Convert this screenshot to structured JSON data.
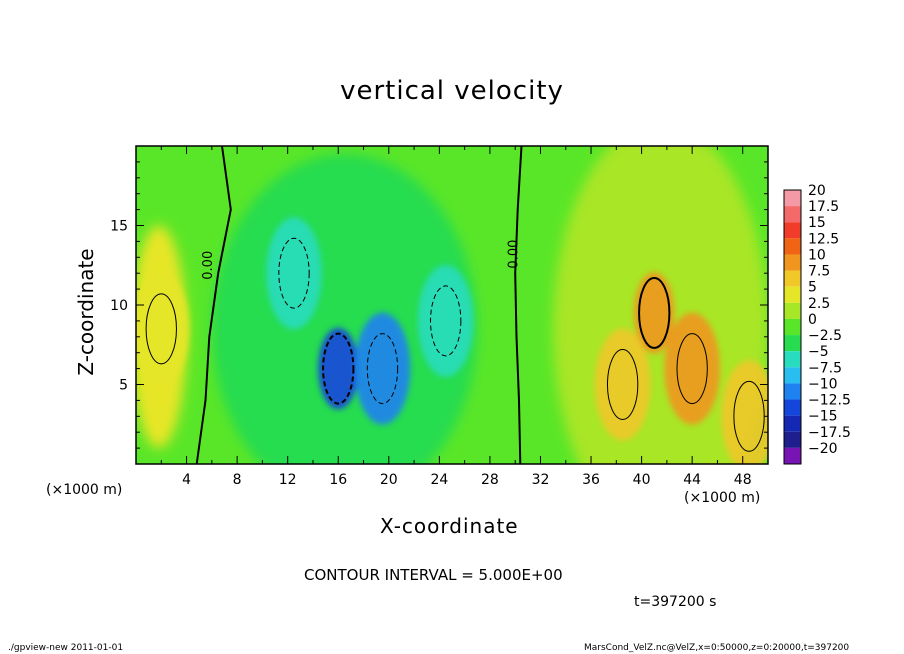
{
  "chart_data": {
    "type": "contour",
    "title": "vertical velocity",
    "xlabel": "X-coordinate",
    "ylabel": "Z-coordinate",
    "x_unit_label": "(×1000 m)",
    "y_unit_label": "(×1000 m)",
    "xlim": [
      0,
      50
    ],
    "ylim": [
      0,
      20
    ],
    "x_ticks": [
      4,
      8,
      12,
      16,
      20,
      24,
      28,
      32,
      36,
      40,
      44,
      48
    ],
    "y_ticks": [
      5,
      10,
      15
    ],
    "contour_interval_label": "CONTOUR INTERVAL = 5.000E+00",
    "contour_labels": [
      {
        "text": "0.00",
        "x": 6.0,
        "z": 12.5
      },
      {
        "text": "0.00",
        "x": 30.2,
        "z": 13.2
      }
    ],
    "colorbar": {
      "labels": [
        "20",
        "17.5",
        "15",
        "12.5",
        "10",
        "7.5",
        "5",
        "2.5",
        "0",
        "-2.5",
        "-5",
        "-7.5",
        "-10",
        "-12.5",
        "-15",
        "-17.5",
        "-20"
      ],
      "colors": [
        "#f49aa6",
        "#f46a6a",
        "#f03c28",
        "#f06414",
        "#f0961e",
        "#f0c828",
        "#e6e628",
        "#a8e628",
        "#5ae628",
        "#28dc50",
        "#28dcbe",
        "#28bef0",
        "#1e82f0",
        "#1446dc",
        "#1428b4",
        "#1e1e8c",
        "#7814b4"
      ]
    },
    "features": [
      {
        "kind": "updraft",
        "x": 2.0,
        "z": 8.5,
        "value": 5
      },
      {
        "kind": "downdraft",
        "x": 12.5,
        "z": 12.0,
        "value": -5
      },
      {
        "kind": "downdraft",
        "x": 16.0,
        "z": 6.0,
        "value": -12
      },
      {
        "kind": "downdraft",
        "x": 19.5,
        "z": 6.0,
        "value": -9
      },
      {
        "kind": "downdraft",
        "x": 24.5,
        "z": 9.0,
        "value": -6
      },
      {
        "kind": "updraft",
        "x": 41.0,
        "z": 9.5,
        "value": 10
      },
      {
        "kind": "updraft",
        "x": 44.0,
        "z": 6.0,
        "value": 9
      },
      {
        "kind": "updraft",
        "x": 38.5,
        "z": 5.0,
        "value": 7
      },
      {
        "kind": "updraft",
        "x": 48.5,
        "z": 3.0,
        "value": 7
      }
    ]
  },
  "time_label": "t=397200 s",
  "footer_left": "./gpview-new   2011-01-01",
  "footer_right": "MarsCond_VelZ.nc@VelZ,x=0:50000,z=0:20000,t=397200"
}
